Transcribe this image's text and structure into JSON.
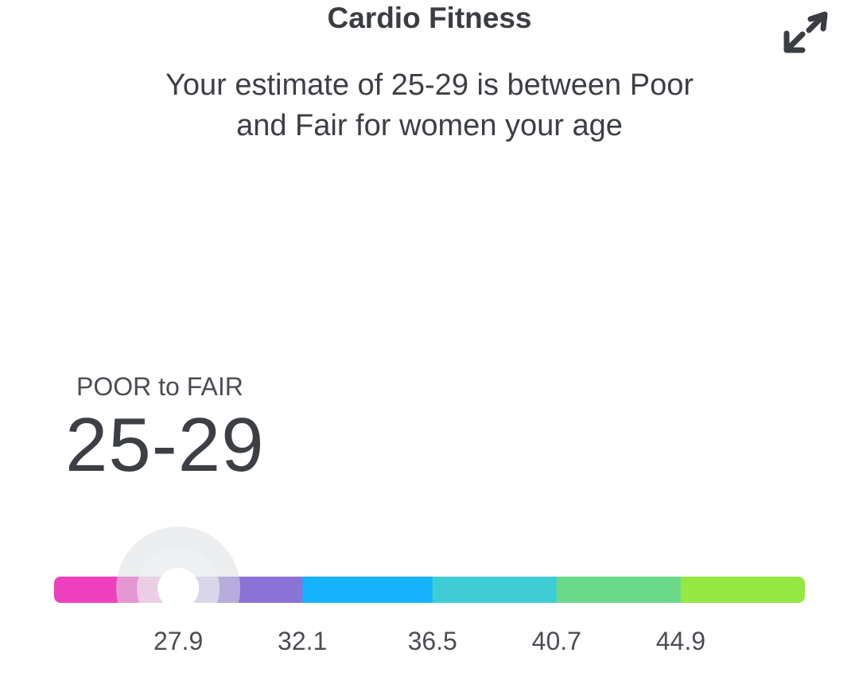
{
  "header": {
    "title": "Cardio Fitness",
    "expand_icon": "expand-arrows-icon"
  },
  "summary": {
    "text_line1": "Your estimate of 25-29 is between Poor",
    "text_line2": "and Fair for women your age"
  },
  "score": {
    "category": "POOR to FAIR",
    "value": "25-29"
  },
  "gauge": {
    "min": 23.7,
    "max": 49.1,
    "marker_value": 27.9,
    "ticks": [
      "27.9",
      "32.1",
      "36.5",
      "40.7",
      "44.9"
    ],
    "segments": [
      {
        "from": 23.7,
        "to": 27.9,
        "color": "#ee3fbc"
      },
      {
        "from": 27.9,
        "to": 32.1,
        "color": "#8b72d6"
      },
      {
        "from": 32.1,
        "to": 36.5,
        "color": "#12b2fb"
      },
      {
        "from": 36.5,
        "to": 40.7,
        "color": "#40ccd4"
      },
      {
        "from": 40.7,
        "to": 44.9,
        "color": "#6cd98a"
      },
      {
        "from": 44.9,
        "to": 49.1,
        "color": "#95e842"
      }
    ]
  }
}
